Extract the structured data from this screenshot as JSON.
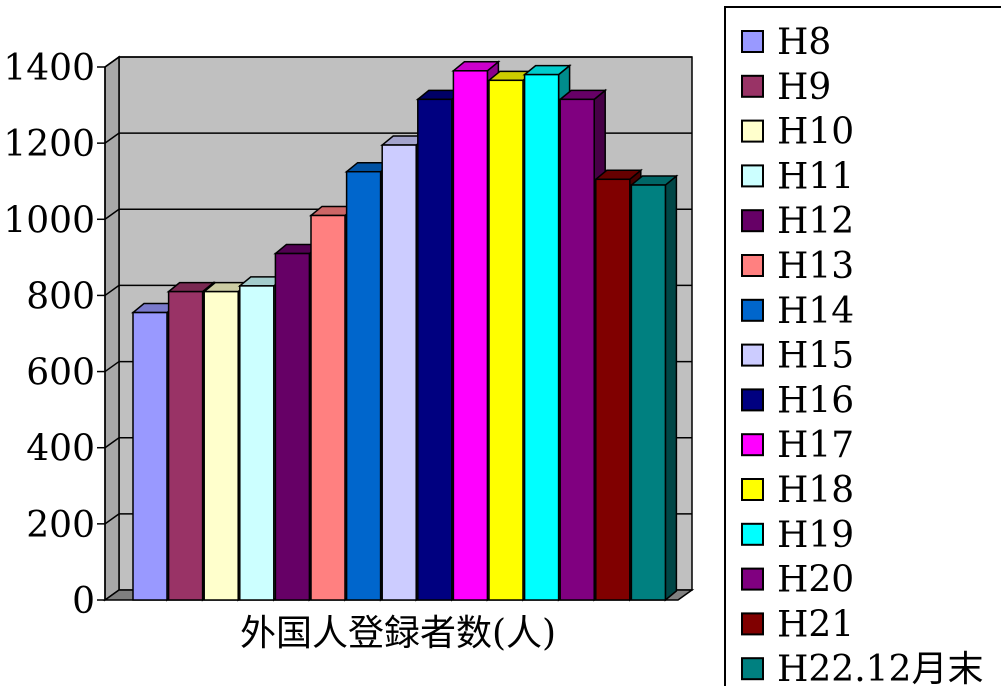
{
  "chart_data": {
    "type": "bar",
    "title": "",
    "xlabel": "外国人登録者数(人)",
    "ylabel": "",
    "ylim": [
      0,
      1400
    ],
    "y_ticks": [
      "0",
      "200",
      "400",
      "600",
      "800",
      "1000",
      "1200",
      "1400"
    ],
    "grid": true,
    "legend_position": "right",
    "series": [
      {
        "name": "H8",
        "value": 755,
        "color": "#9999ff"
      },
      {
        "name": "H9",
        "value": 810,
        "color": "#993366"
      },
      {
        "name": "H10",
        "value": 810,
        "color": "#ffffcc"
      },
      {
        "name": "H11",
        "value": 825,
        "color": "#ccffff"
      },
      {
        "name": "H12",
        "value": 910,
        "color": "#660066"
      },
      {
        "name": "H13",
        "value": 1010,
        "color": "#ff8080"
      },
      {
        "name": "H14",
        "value": 1125,
        "color": "#0066cc"
      },
      {
        "name": "H15",
        "value": 1195,
        "color": "#ccccff"
      },
      {
        "name": "H16",
        "value": 1315,
        "color": "#000080"
      },
      {
        "name": "H17",
        "value": 1390,
        "color": "#ff00ff"
      },
      {
        "name": "H18",
        "value": 1365,
        "color": "#ffff00"
      },
      {
        "name": "H19",
        "value": 1380,
        "color": "#00ffff"
      },
      {
        "name": "H20",
        "value": 1315,
        "color": "#800080"
      },
      {
        "name": "H21",
        "value": 1105,
        "color": "#800000"
      },
      {
        "name": "H22.12月末",
        "value": 1090,
        "color": "#008080"
      }
    ],
    "wall_color": "#c0c0c0",
    "floor_color": "#808080"
  }
}
